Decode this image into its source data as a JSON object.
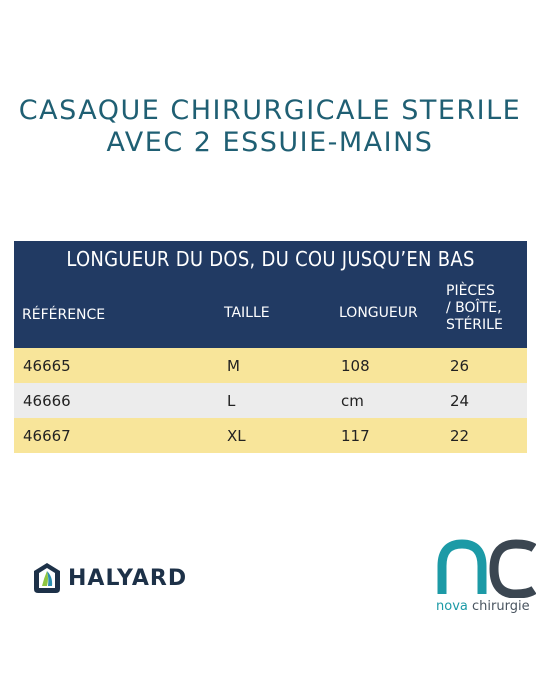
{
  "title": {
    "line1": "CASAQUE CHIRURGICALE STERILE",
    "line2": "AVEC 2 ESSUIE-MAINS"
  },
  "table": {
    "banner": "LONGUEUR DU DOS, DU COU JUSQU’EN BAS",
    "headers": {
      "reference": "RÉFÉRENCE",
      "taille": "TAILLE",
      "longueur": "LONGUEUR",
      "pieces_line1": "PIÈCES",
      "pieces_line2": "/ BOÎTE,",
      "pieces_line3": "STÉRILE"
    },
    "rows": [
      {
        "reference": "46665",
        "taille": "M",
        "longueur": "108",
        "pieces": "26"
      },
      {
        "reference": "46666",
        "taille": "L",
        "longueur": "cm",
        "pieces": "24"
      },
      {
        "reference": "46667",
        "taille": "XL",
        "longueur": "117",
        "pieces": "22"
      }
    ],
    "colors": {
      "header_bg": "#213a63",
      "row_yellow": "#f8e59a",
      "row_grey": "#ececec"
    }
  },
  "logos": {
    "halyard": {
      "name": "HALYARD",
      "icon": "halyard-logo-icon",
      "color": "#1d3148"
    },
    "nova": {
      "word1": "nova",
      "word2": "chirurgie",
      "icon": "nc-monogram-icon",
      "accent": "#1c9aa6",
      "dark": "#3b4651"
    }
  }
}
